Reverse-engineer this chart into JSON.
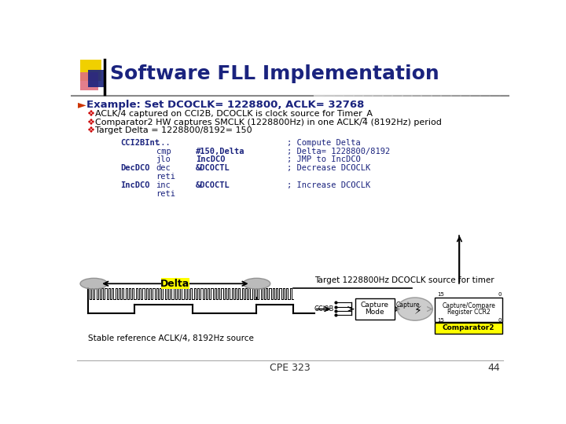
{
  "title": "Software FLL Implementation",
  "title_color": "#1a237e",
  "title_fontsize": 18,
  "bg_color": "#ffffff",
  "bullet_header": "Example: Set DCOCLK= 1228800, ACLK= 32768",
  "bullets": [
    "ACLK/4 captured on CCI2B, DCOCLK is clock source for Timer_A",
    "Comparator2 HW captures SMCLK (1228800Hz) in one ACLK/4 (8192Hz) period",
    "Target Delta = 1228800/8192= 150"
  ],
  "code_lines": [
    [
      "CCI2BInt",
      "...",
      "",
      "; Compute Delta"
    ],
    [
      "",
      "cmp",
      "#150,Delta",
      "; Delta= 1228800/8192"
    ],
    [
      "",
      "jlo",
      "IncDCO",
      "; JMP to IncDCO"
    ],
    [
      "DecDCO",
      "dec",
      "&DCOCTL",
      "; Decrease DCOCLK"
    ],
    [
      "",
      "reti",
      "",
      ""
    ],
    [
      "IncDCO",
      "inc",
      "&DCOCTL",
      "; Increase DCOCLK"
    ],
    [
      "",
      "reti",
      "",
      ""
    ]
  ],
  "footer_text": "CPE 323",
  "footer_page": "44",
  "diagram_label_delta": "Delta",
  "diagram_label_stable": "Stable reference ACLK/4, 8192Hz source",
  "diagram_label_target": "Target 1228800Hz DCOCLK source for timer",
  "diagram_label_comparator2": "Comparator2",
  "diagram_label_capture_top": "Capture",
  "diagram_label_mode": "Mode",
  "diagram_label_ccr_line1": "Capture/Compare",
  "diagram_label_ccr_line2": "Register CCR2",
  "diagram_label_ccr2b": "CCI2B",
  "yellow_color": "#ffff00",
  "red_color": "#cc0000",
  "blue_dark": "#1a237e",
  "code_color": "#1a237e",
  "gray_ellipse": "#b0b0b0"
}
